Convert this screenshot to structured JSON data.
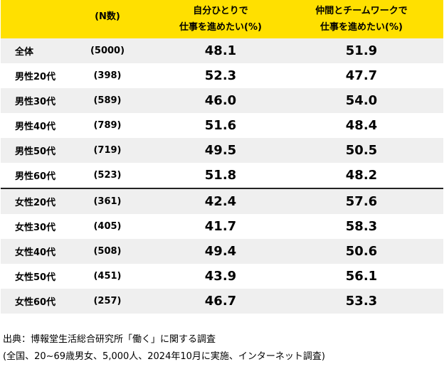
{
  "header": {
    "n_label": "(N数)",
    "col_solo": [
      "自分ひとりで",
      "仕事を進めたい(%)"
    ],
    "col_team": [
      "仲間とチームワークで",
      "仕事を進めたい(%)"
    ]
  },
  "rows": [
    {
      "label": "全体",
      "n": "(5000)",
      "solo": "48.1",
      "team": "51.9"
    },
    {
      "label": "男性20代",
      "n": "(398)",
      "solo": "52.3",
      "team": "47.7"
    },
    {
      "label": "男性30代",
      "n": "(589)",
      "solo": "46.0",
      "team": "54.0"
    },
    {
      "label": "男性40代",
      "n": "(789)",
      "solo": "51.6",
      "team": "48.4"
    },
    {
      "label": "男性50代",
      "n": "(719)",
      "solo": "49.5",
      "team": "50.5"
    },
    {
      "label": "男性60代",
      "n": "(523)",
      "solo": "51.8",
      "team": "48.2"
    },
    {
      "label": "女性20代",
      "n": "(361)",
      "solo": "42.4",
      "team": "57.6"
    },
    {
      "label": "女性30代",
      "n": "(405)",
      "solo": "41.7",
      "team": "58.3"
    },
    {
      "label": "女性40代",
      "n": "(508)",
      "solo": "49.4",
      "team": "50.6"
    },
    {
      "label": "女性50代",
      "n": "(451)",
      "solo": "43.9",
      "team": "56.1"
    },
    {
      "label": "女性60代",
      "n": "(257)",
      "solo": "46.7",
      "team": "53.3"
    }
  ],
  "notes": {
    "source": "出典：博報堂生活総合研究所「働く」に関する調査",
    "detail": "(全国、20~69歳男女、5,000人、2024年10月に実施、インターネット調査)"
  }
}
